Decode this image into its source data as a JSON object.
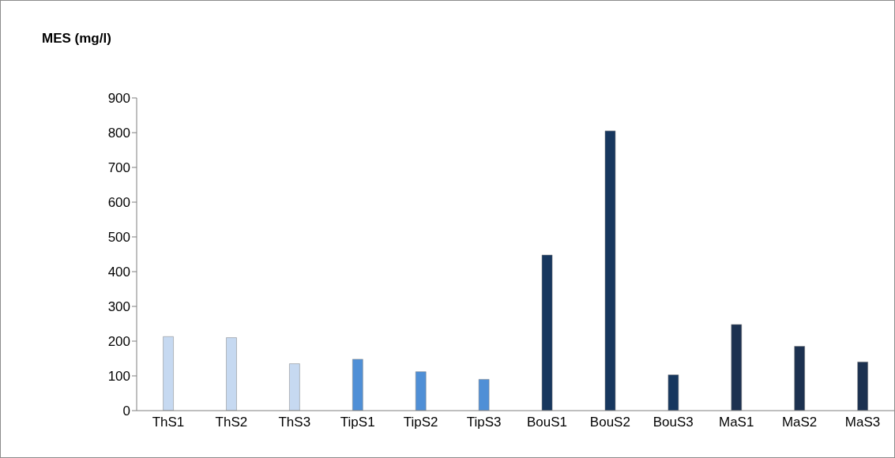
{
  "chart_data": {
    "type": "bar",
    "ylabel": "MES (mg/l)",
    "categories": [
      "ThS1",
      "ThS2",
      "ThS3",
      "TipS1",
      "TipS2",
      "TipS3",
      "BouS1",
      "BouS2",
      "BouS3",
      "MaS1",
      "MaS2",
      "MaS3"
    ],
    "values": [
      213,
      210,
      135,
      148,
      112,
      90,
      448,
      805,
      103,
      248,
      185,
      140
    ],
    "colors": [
      "#c6d9f1",
      "#c6d9f1",
      "#c6d9f1",
      "#4f8fd6",
      "#4f8fd6",
      "#4f8fd6",
      "#17375e",
      "#17375e",
      "#17375e",
      "#1c3150",
      "#1c3150",
      "#1c3150"
    ],
    "ylim": [
      0,
      900
    ],
    "yticks": [
      0,
      100,
      200,
      300,
      400,
      500,
      600,
      700,
      800,
      900
    ],
    "grid": false,
    "legend": false
  }
}
